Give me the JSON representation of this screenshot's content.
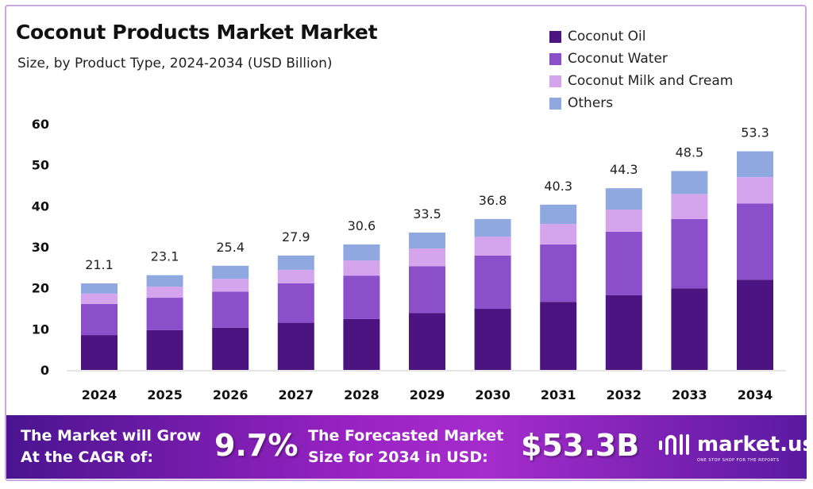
{
  "chart_data": {
    "type": "bar",
    "stacked": true,
    "title": "Coconut Products Market Market",
    "subtitle": "Size, by Product Type, 2024-2034 (USD Billion)",
    "categories": [
      "2024",
      "2025",
      "2026",
      "2027",
      "2028",
      "2029",
      "2030",
      "2031",
      "2032",
      "2033",
      "2034"
    ],
    "series": [
      {
        "name": "Coconut Oil",
        "color": "#4b1480",
        "values": [
          8.5,
          9.7,
          10.3,
          11.5,
          12.4,
          13.9,
          14.9,
          16.6,
          18.2,
          19.9,
          22.0
        ]
      },
      {
        "name": "Coconut Water",
        "color": "#8a4fc9",
        "values": [
          7.6,
          7.9,
          8.8,
          9.6,
          10.6,
          11.4,
          13.0,
          14.0,
          15.5,
          16.9,
          18.6
        ]
      },
      {
        "name": "Coconut Milk and Cream",
        "color": "#d4a5ec",
        "values": [
          2.5,
          2.7,
          3.1,
          3.3,
          3.7,
          4.3,
          4.6,
          5.0,
          5.4,
          6.1,
          6.4
        ]
      },
      {
        "name": "Others",
        "color": "#8fa8e0",
        "values": [
          2.5,
          2.8,
          3.2,
          3.5,
          3.9,
          3.9,
          4.3,
          4.7,
          5.2,
          5.6,
          6.3
        ]
      }
    ],
    "totals": [
      "21.1",
      "23.1",
      "25.4",
      "27.9",
      "30.6",
      "33.5",
      "36.8",
      "40.3",
      "44.3",
      "48.5",
      "53.3"
    ],
    "ylim": [
      0,
      60
    ],
    "yticks": [
      "0",
      "10",
      "20",
      "30",
      "40",
      "50",
      "60"
    ],
    "xlabel": "",
    "ylabel": "",
    "grid": false,
    "legend": "top-right"
  },
  "banner": {
    "cagr_label_1": "The Market will Grow",
    "cagr_label_2": "At the CAGR of:",
    "cagr_value": "9.7%",
    "forecast_label_1": "The Forecasted Market",
    "forecast_label_2": "Size for 2034 in USD:",
    "forecast_value": "$53.3B",
    "logo_name": "market.us",
    "logo_tagline": "ONE STOP SHOP FOR THE REPORTS"
  }
}
